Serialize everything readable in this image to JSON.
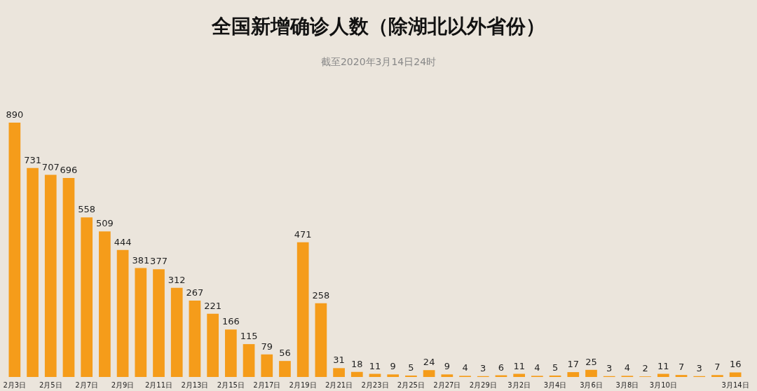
{
  "chart_data": {
    "type": "bar",
    "title": "全国新增确诊人数（除湖北以外省份）",
    "subtitle": "截至2020年3月14日24时",
    "categories": [
      "2月3日",
      null,
      "2月5日",
      null,
      "2月7日",
      null,
      "2月9日",
      null,
      "2月11日",
      null,
      "2月13日",
      null,
      "2月15日",
      null,
      "2月17日",
      null,
      "2月19日",
      null,
      "2月21日",
      null,
      "2月23日",
      null,
      "2月25日",
      null,
      "2月27日",
      null,
      "2月29日",
      null,
      "3月2日",
      null,
      "3月4日",
      null,
      "3月6日",
      null,
      "3月8日",
      null,
      "3月10日",
      null,
      null,
      null,
      "3月14日"
    ],
    "values": [
      890,
      731,
      707,
      696,
      558,
      509,
      444,
      381,
      377,
      312,
      267,
      221,
      166,
      115,
      79,
      56,
      471,
      258,
      31,
      18,
      11,
      9,
      5,
      24,
      9,
      4,
      3,
      6,
      11,
      4,
      5,
      17,
      25,
      3,
      4,
      2,
      11,
      7,
      3,
      7,
      16
    ],
    "color": "#f59c1a",
    "data_labels": true
  }
}
